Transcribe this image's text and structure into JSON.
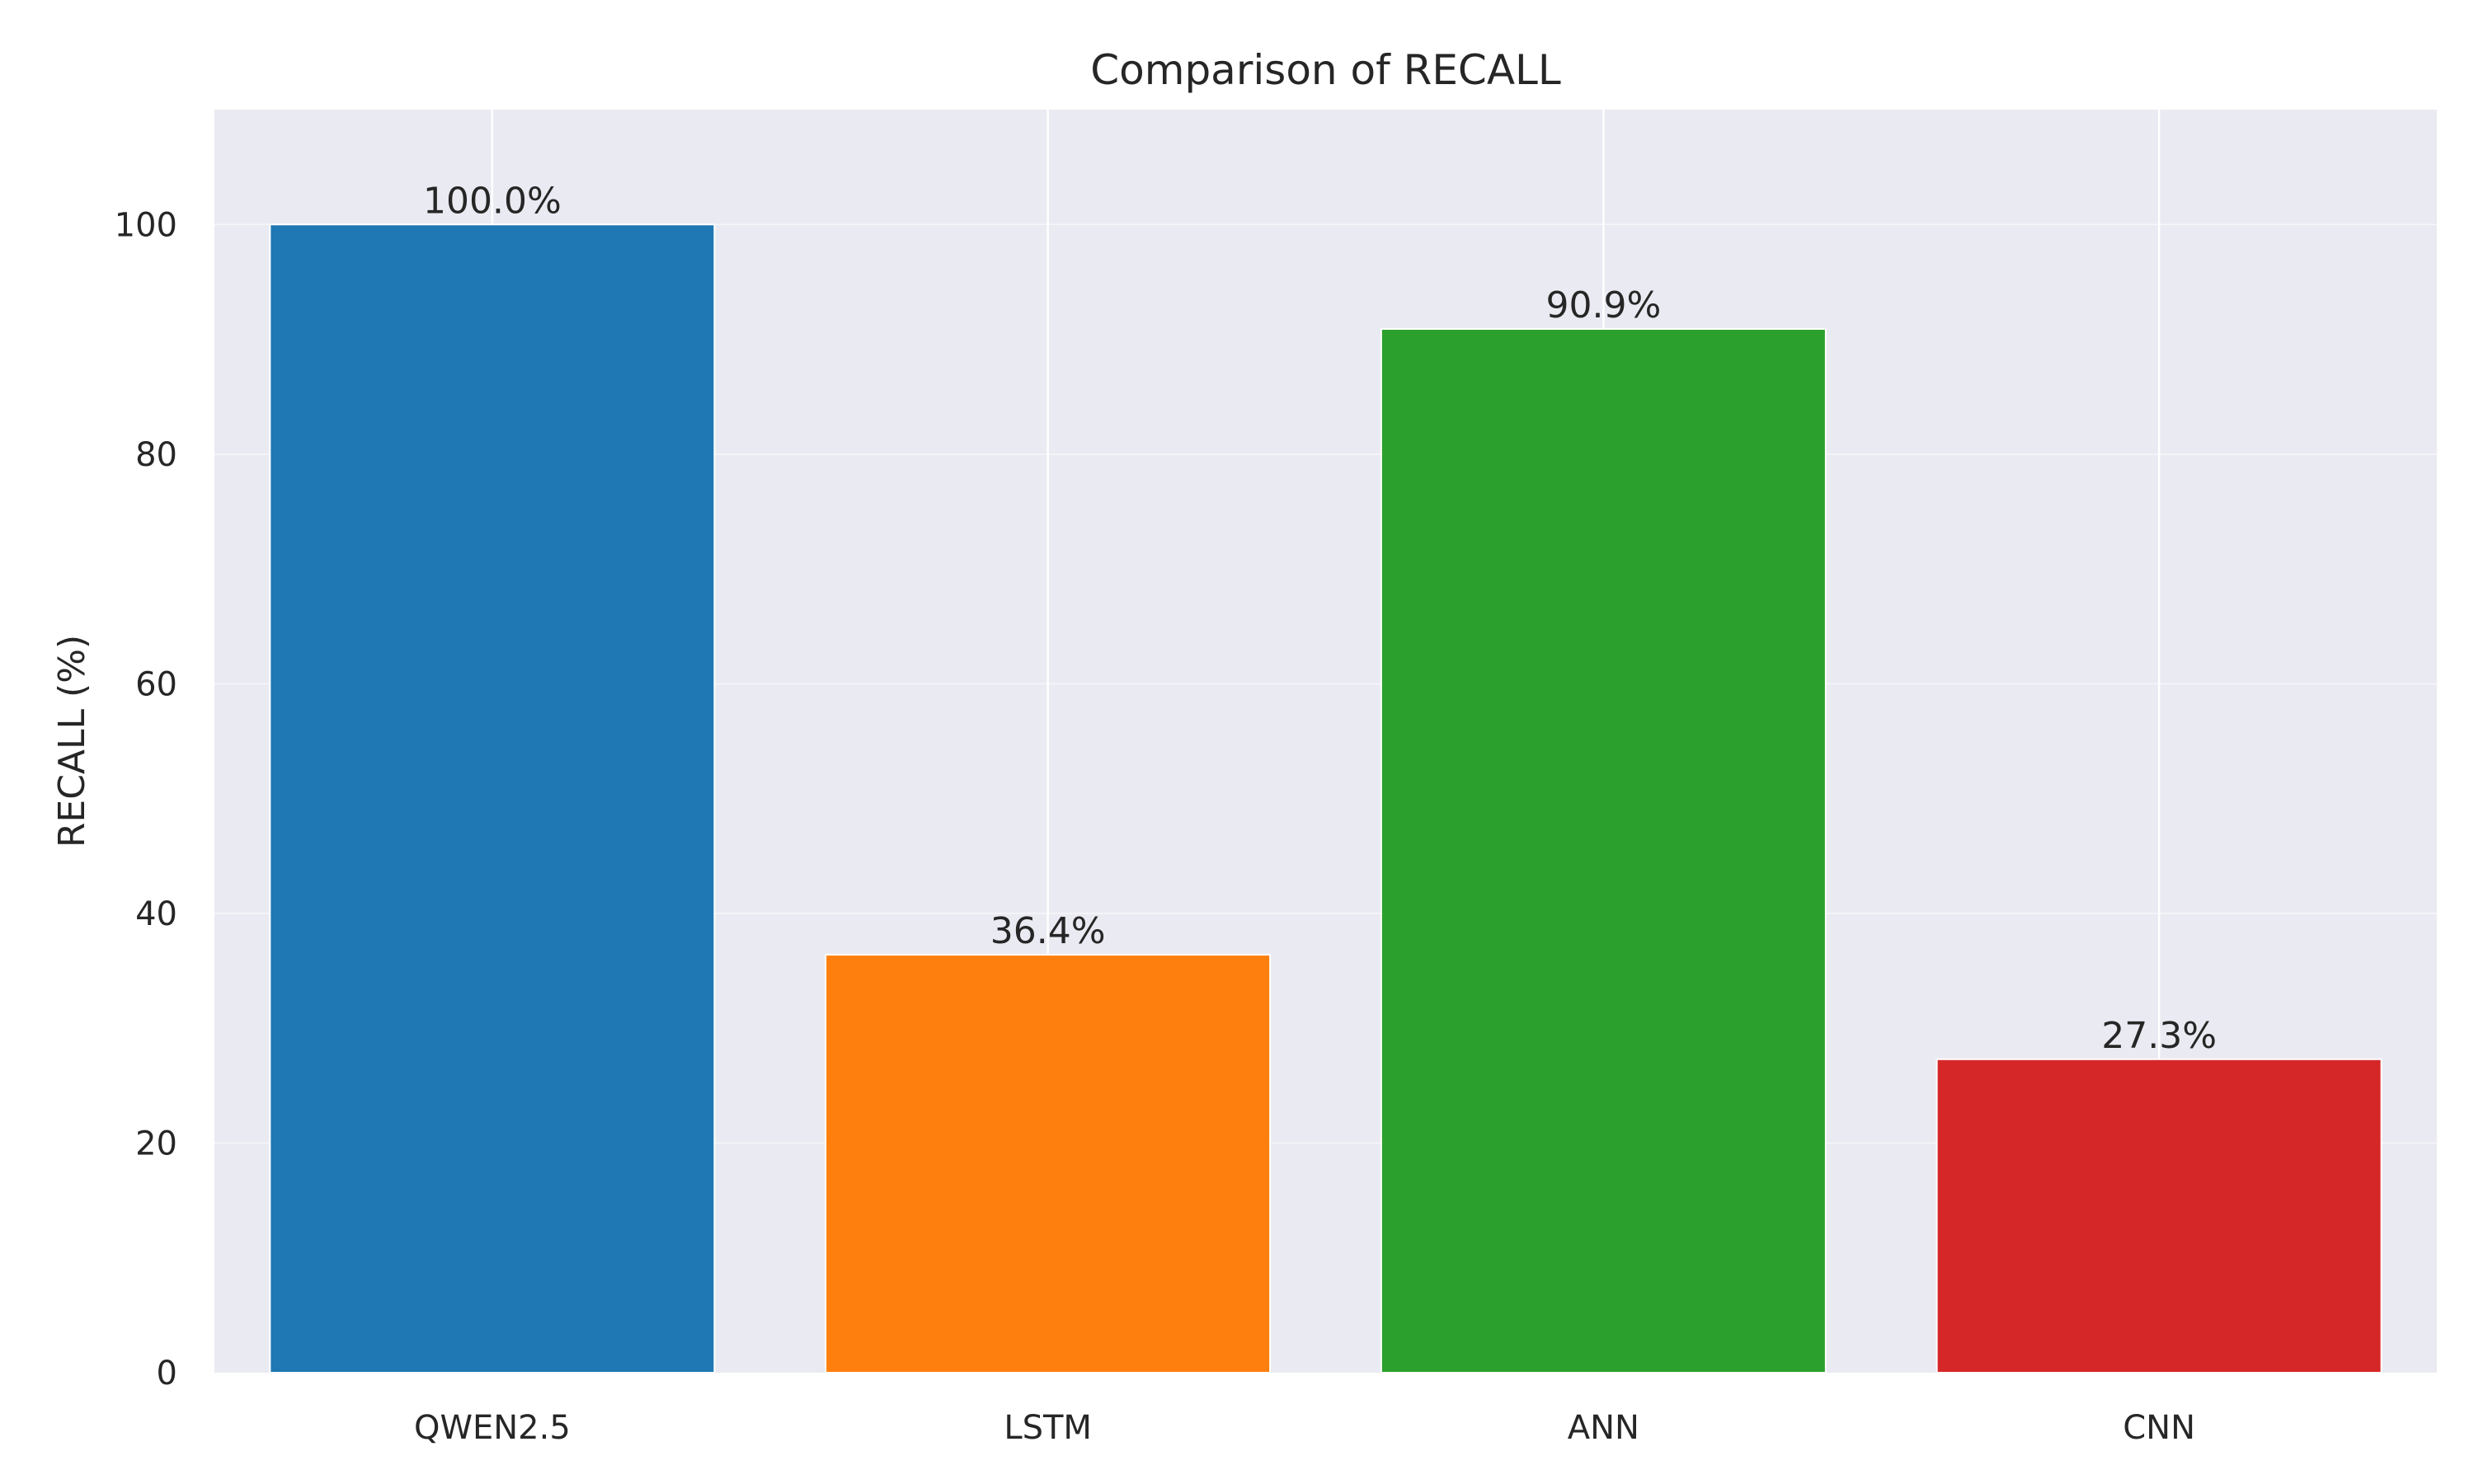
{
  "chart_data": {
    "type": "bar",
    "title": "Comparison of RECALL",
    "xlabel": "",
    "ylabel": "RECALL (%)",
    "categories": [
      "QWEN2.5",
      "LSTM",
      "ANN",
      "CNN"
    ],
    "values": [
      100.0,
      36.4,
      90.9,
      27.3
    ],
    "value_labels": [
      "100.0%",
      "36.4%",
      "90.9%",
      "27.3%"
    ],
    "colors": [
      "#1f77b4",
      "#ff7f0e",
      "#2ca02c",
      "#d62728"
    ],
    "ylim": [
      0,
      110
    ],
    "yticks": [
      0,
      20,
      40,
      60,
      80,
      100
    ],
    "ytick_labels": [
      "0",
      "20",
      "40",
      "60",
      "80",
      "100"
    ],
    "grid": true,
    "legend": "none",
    "background_color": "#eaeaf2",
    "grid_color": "#ffffff"
  }
}
